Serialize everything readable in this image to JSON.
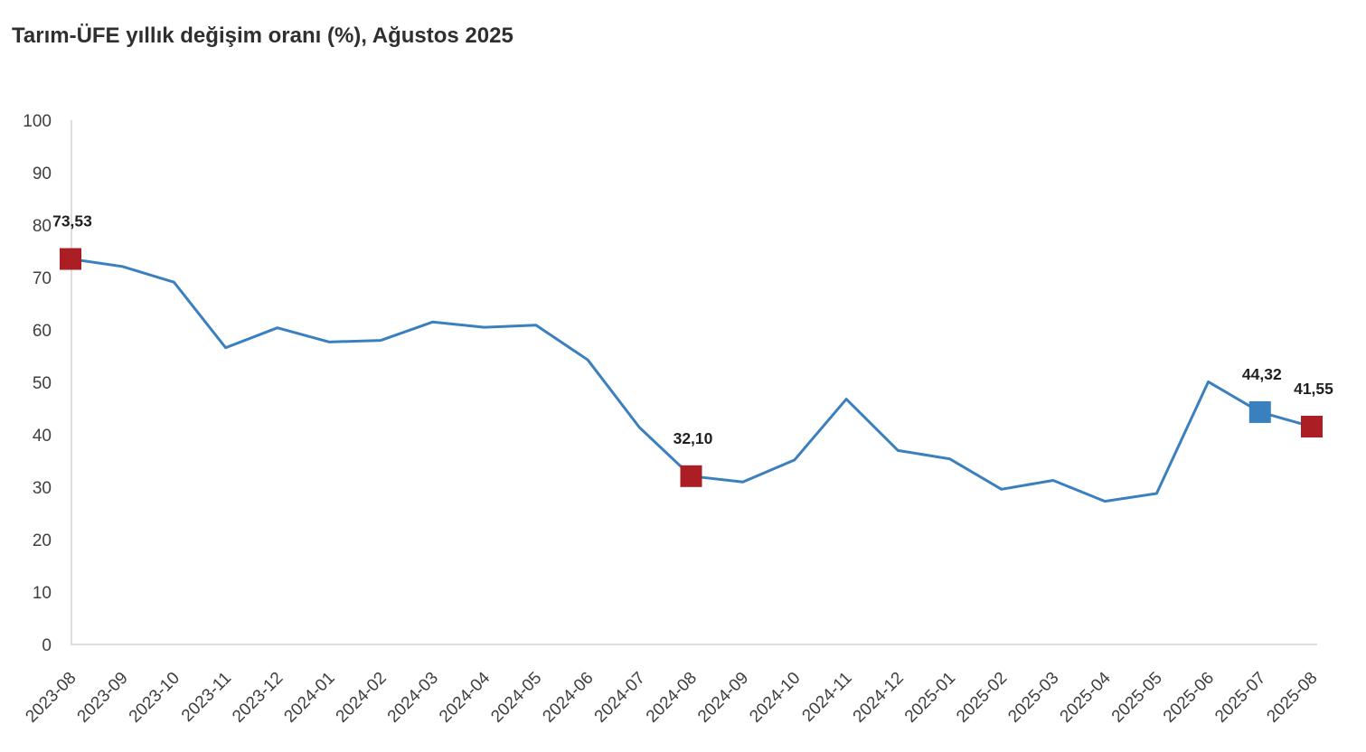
{
  "title": "Tarım-ÜFE yıllık değişim oranı (%), Ağustos 2025",
  "chart_data": {
    "type": "line",
    "title": "Tarım-ÜFE yıllık değişim oranı (%), Ağustos 2025",
    "xlabel": "",
    "ylabel": "",
    "x": [
      "2023-08",
      "2023-09",
      "2023-10",
      "2023-11",
      "2023-12",
      "2024-01",
      "2024-02",
      "2024-03",
      "2024-04",
      "2024-05",
      "2024-06",
      "2024-07",
      "2024-08",
      "2024-09",
      "2024-10",
      "2024-11",
      "2024-12",
      "2025-01",
      "2025-02",
      "2025-03",
      "2025-04",
      "2025-05",
      "2025-06",
      "2025-07",
      "2025-08"
    ],
    "values": [
      73.53,
      72.1,
      69.1,
      56.6,
      60.4,
      57.7,
      58.0,
      61.5,
      60.5,
      60.9,
      54.3,
      41.4,
      32.1,
      31.0,
      35.2,
      46.8,
      37.0,
      35.4,
      29.6,
      31.3,
      27.3,
      28.8,
      50.1,
      44.32,
      41.55
    ],
    "ylim": [
      0,
      100
    ],
    "yticks": [
      0,
      10,
      20,
      30,
      40,
      50,
      60,
      70,
      80,
      90,
      100
    ],
    "grid": false,
    "legend_position": "none",
    "colors": {
      "line": "#3a80bf",
      "highlight_red": "#ab1f24",
      "highlight_blue": "#3a80bf",
      "axis_line": "#dedede",
      "tick_label": "#3f3f3f",
      "point_label": "#1f1f1f"
    },
    "highlights": [
      {
        "x": "2023-08",
        "index": 0,
        "value": 73.53,
        "label": "73,53",
        "marker": "square",
        "color_key": "highlight_red"
      },
      {
        "x": "2024-08",
        "index": 12,
        "value": 32.1,
        "label": "32,10",
        "marker": "square",
        "color_key": "highlight_red"
      },
      {
        "x": "2025-07",
        "index": 23,
        "value": 44.32,
        "label": "44,32",
        "marker": "square",
        "color_key": "highlight_blue"
      },
      {
        "x": "2025-08",
        "index": 24,
        "value": 41.55,
        "label": "41,55",
        "marker": "square",
        "color_key": "highlight_red"
      }
    ]
  }
}
